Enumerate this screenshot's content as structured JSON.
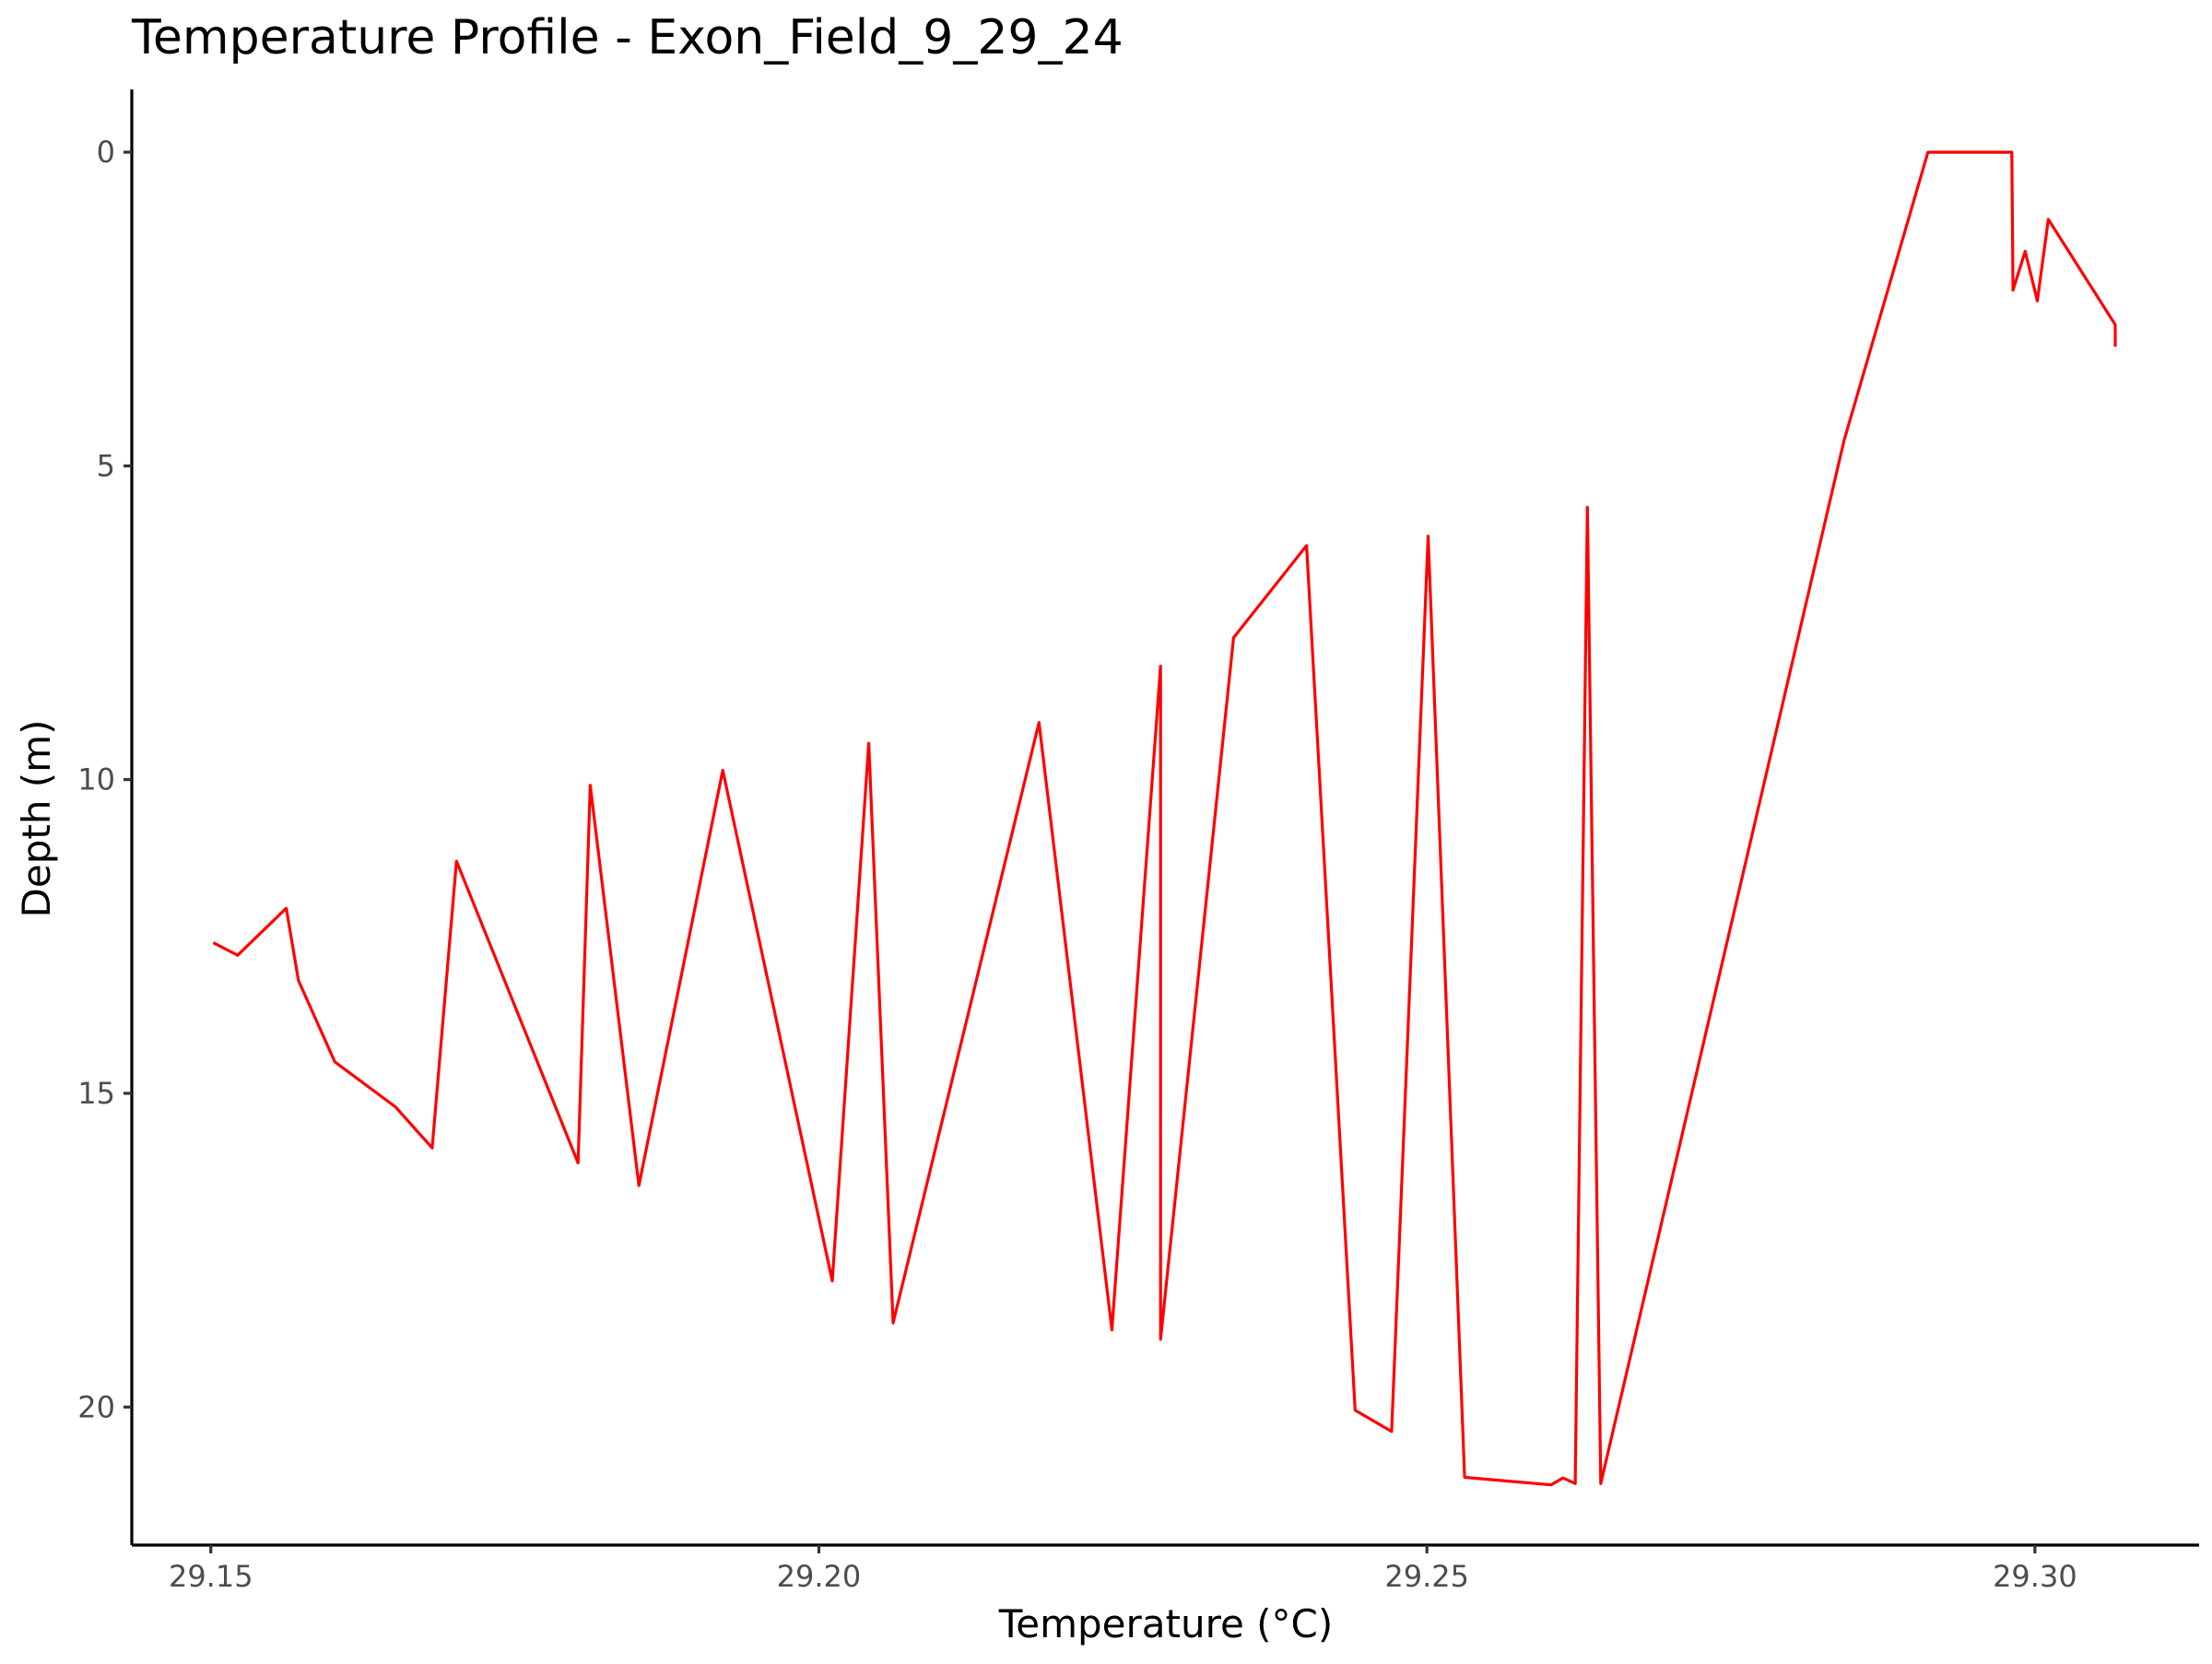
{
  "chart_data": {
    "type": "line",
    "title": "Temperature Profile - Exon_Field_9_29_24",
    "xlabel": "Temperature (°C)",
    "ylabel": "Depth (m)",
    "xlim": [
      29.1435,
      29.3135
    ],
    "ylim": [
      -1,
      22.2
    ],
    "y_reversed": true,
    "grid": false,
    "x_ticks": [
      29.15,
      29.2,
      29.25,
      29.3
    ],
    "x_tick_labels": [
      "29.15",
      "29.20",
      "29.25",
      "29.30"
    ],
    "y_ticks": [
      0,
      5,
      10,
      15,
      20
    ],
    "y_tick_labels": [
      "0",
      "5",
      "10",
      "15",
      "20"
    ],
    "series": [
      {
        "color": "#ff0000",
        "points": [
          {
            "x": 29.3066,
            "y": 3.1
          },
          {
            "x": 29.3066,
            "y": 2.75
          },
          {
            "x": 29.3011,
            "y": 1.07
          },
          {
            "x": 29.3002,
            "y": 2.37
          },
          {
            "x": 29.2992,
            "y": 1.58
          },
          {
            "x": 29.2982,
            "y": 2.2
          },
          {
            "x": 29.2981,
            "y": 0.0
          },
          {
            "x": 29.2912,
            "y": 0.0
          },
          {
            "x": 29.2843,
            "y": 4.6
          },
          {
            "x": 29.2643,
            "y": 21.22
          },
          {
            "x": 29.2632,
            "y": 5.66
          },
          {
            "x": 29.2622,
            "y": 21.22
          },
          {
            "x": 29.2612,
            "y": 21.13
          },
          {
            "x": 29.2602,
            "y": 21.24
          },
          {
            "x": 29.2531,
            "y": 21.12
          },
          {
            "x": 29.2501,
            "y": 6.12
          },
          {
            "x": 29.2471,
            "y": 20.39
          },
          {
            "x": 29.2441,
            "y": 20.05
          },
          {
            "x": 29.2401,
            "y": 6.27
          },
          {
            "x": 29.2341,
            "y": 7.74
          },
          {
            "x": 29.2281,
            "y": 18.92
          },
          {
            "x": 29.2281,
            "y": 8.19
          },
          {
            "x": 29.2241,
            "y": 18.77
          },
          {
            "x": 29.2181,
            "y": 9.09
          },
          {
            "x": 29.2061,
            "y": 18.66
          },
          {
            "x": 29.2041,
            "y": 9.42
          },
          {
            "x": 29.2011,
            "y": 17.99
          },
          {
            "x": 29.1921,
            "y": 9.85
          },
          {
            "x": 29.1852,
            "y": 16.47
          },
          {
            "x": 29.1812,
            "y": 10.09
          },
          {
            "x": 29.1802,
            "y": 16.11
          },
          {
            "x": 29.1702,
            "y": 11.3
          },
          {
            "x": 29.1682,
            "y": 15.87
          },
          {
            "x": 29.1652,
            "y": 15.22
          },
          {
            "x": 29.1602,
            "y": 14.5
          },
          {
            "x": 29.1572,
            "y": 13.2
          },
          {
            "x": 29.1562,
            "y": 12.05
          },
          {
            "x": 29.1522,
            "y": 12.8
          },
          {
            "x": 29.1502,
            "y": 12.6
          }
        ]
      }
    ]
  }
}
